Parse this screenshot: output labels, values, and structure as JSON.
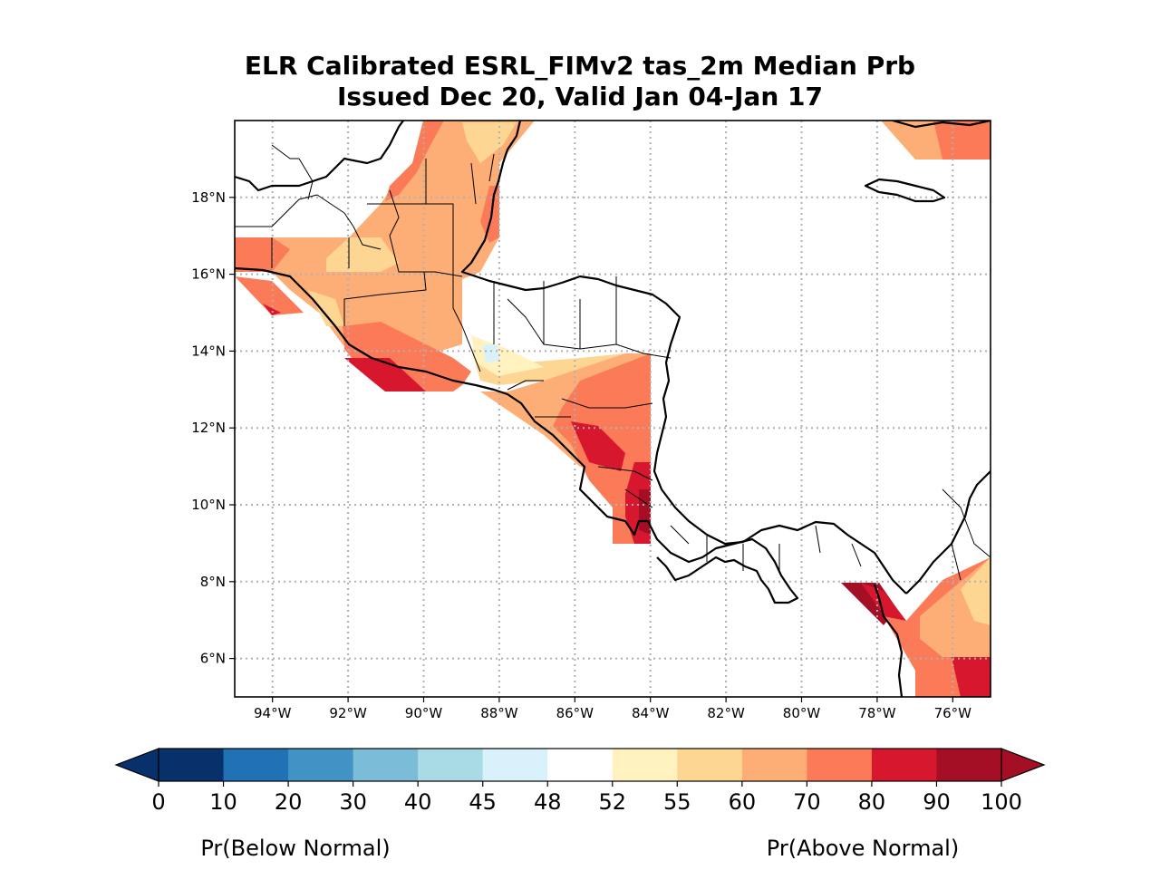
{
  "title": {
    "line1": "ELR Calibrated ESRL_FIMv2 tas_2m Median Prb",
    "line2": "Issued Dec 20, Valid Jan 04-Jan 17"
  },
  "map": {
    "lon_range": [
      -95,
      -75
    ],
    "lat_range": [
      5,
      20
    ],
    "lon_ticks": [
      {
        "lon": -94,
        "label": "94°W"
      },
      {
        "lon": -92,
        "label": "92°W"
      },
      {
        "lon": -90,
        "label": "90°W"
      },
      {
        "lon": -88,
        "label": "88°W"
      },
      {
        "lon": -86,
        "label": "86°W"
      },
      {
        "lon": -84,
        "label": "84°W"
      },
      {
        "lon": -82,
        "label": "82°W"
      },
      {
        "lon": -80,
        "label": "80°W"
      },
      {
        "lon": -78,
        "label": "78°W"
      },
      {
        "lon": -76,
        "label": "76°W"
      }
    ],
    "lat_ticks": [
      {
        "lat": 18,
        "label": "18°N"
      },
      {
        "lat": 16,
        "label": "16°N"
      },
      {
        "lat": 14,
        "label": "14°N"
      },
      {
        "lat": 12,
        "label": "12°N"
      },
      {
        "lat": 10,
        "label": "10°N"
      },
      {
        "lat": 8,
        "label": "8°N"
      },
      {
        "lat": 6,
        "label": "6°N"
      }
    ],
    "gridlines": true,
    "gridline_style": "dotted"
  },
  "colorbar": {
    "levels": [
      "0",
      "10",
      "20",
      "30",
      "40",
      "45",
      "48",
      "52",
      "55",
      "60",
      "70",
      "80",
      "90",
      "100"
    ],
    "colors": [
      "#08306b",
      "#2171b5",
      "#4292c6",
      "#7bbcd8",
      "#a9dbe6",
      "#d9f1fb",
      "#ffffff",
      "#fff2bf",
      "#fed693",
      "#fdae76",
      "#fb7a58",
      "#d7172d",
      "#a50f26"
    ],
    "extend": "both",
    "below_label": "Pr(Below Normal)",
    "above_label": "Pr(Above Normal)"
  }
}
